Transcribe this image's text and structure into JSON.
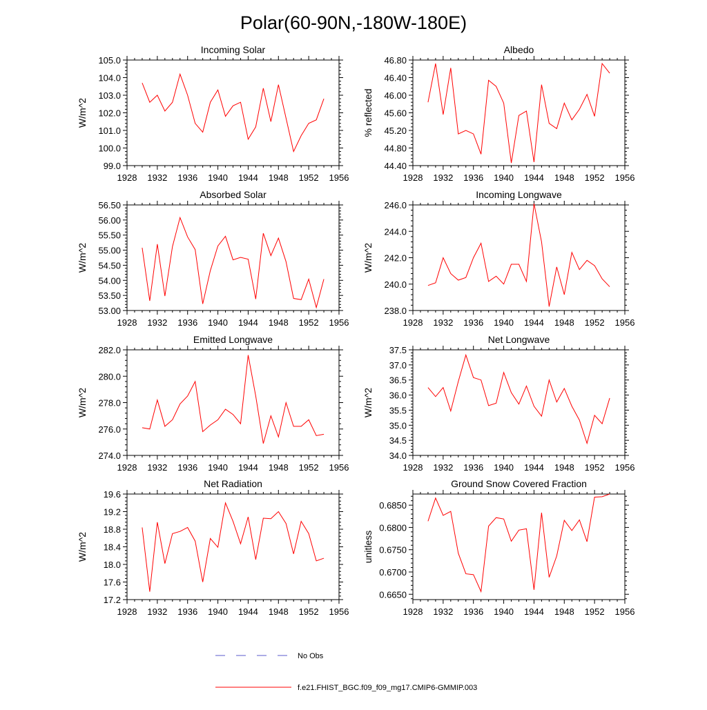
{
  "figure": {
    "title": "Polar(60-90N,-180W-180E)"
  },
  "legend": {
    "items": [
      {
        "label": "No Obs",
        "color": "#5a5acc",
        "dashed": true
      },
      {
        "label": "f.e21.FHIST_BGC.f09_f09_mg17.CMIP6-GMMIP.003",
        "color": "#ff0000",
        "dashed": false
      }
    ]
  },
  "colors": {
    "series": "#ff0000",
    "axis": "#000000"
  },
  "chart_data": [
    {
      "type": "line",
      "title": "Incoming Solar",
      "xlabel": "",
      "ylabel": "W/m^2",
      "xlim": [
        1928,
        1956
      ],
      "xticks": [
        "1928",
        "1932",
        "1936",
        "1940",
        "1944",
        "1948",
        "1952",
        "1956"
      ],
      "ylim": [
        99.0,
        105.0
      ],
      "yticks": [
        "99.0",
        "100.0",
        "101.0",
        "102.0",
        "103.0",
        "104.0",
        "105.0"
      ],
      "x": [
        1930,
        1931,
        1932,
        1933,
        1934,
        1935,
        1936,
        1937,
        1938,
        1939,
        1940,
        1941,
        1942,
        1943,
        1944,
        1945,
        1946,
        1947,
        1948,
        1949,
        1950,
        1951,
        1952,
        1953,
        1954
      ],
      "series": [
        {
          "values": [
            103.7,
            102.6,
            103.0,
            102.1,
            102.6,
            104.2,
            103.0,
            101.4,
            100.9,
            102.6,
            103.3,
            101.8,
            102.4,
            102.6,
            100.5,
            101.2,
            103.4,
            101.5,
            103.6,
            101.7,
            99.8,
            100.7,
            101.4,
            101.6,
            102.8
          ]
        }
      ]
    },
    {
      "type": "line",
      "title": "Albedo",
      "xlabel": "",
      "ylabel": "% reflected",
      "xlim": [
        1928,
        1956
      ],
      "xticks": [
        "1928",
        "1932",
        "1936",
        "1940",
        "1944",
        "1948",
        "1952",
        "1956"
      ],
      "ylim": [
        44.4,
        46.8
      ],
      "yticks": [
        "44.40",
        "44.80",
        "45.20",
        "45.60",
        "46.00",
        "46.40",
        "46.80"
      ],
      "x": [
        1930,
        1931,
        1932,
        1933,
        1934,
        1935,
        1936,
        1937,
        1938,
        1939,
        1940,
        1941,
        1942,
        1943,
        1944,
        1945,
        1946,
        1947,
        1948,
        1949,
        1950,
        1951,
        1952,
        1953,
        1954
      ],
      "series": [
        {
          "values": [
            45.84,
            46.72,
            45.56,
            46.62,
            45.12,
            45.2,
            45.12,
            44.66,
            46.34,
            46.2,
            45.82,
            44.46,
            45.54,
            45.64,
            44.48,
            46.24,
            45.36,
            45.24,
            45.82,
            45.44,
            45.68,
            46.02,
            45.52,
            46.72,
            46.5
          ]
        }
      ]
    },
    {
      "type": "line",
      "title": "Absorbed Solar",
      "xlabel": "",
      "ylabel": "W/m^2",
      "xlim": [
        1928,
        1956
      ],
      "xticks": [
        "1928",
        "1932",
        "1936",
        "1940",
        "1944",
        "1948",
        "1952",
        "1956"
      ],
      "ylim": [
        53.0,
        56.5
      ],
      "yticks": [
        "53.00",
        "53.50",
        "54.00",
        "54.50",
        "55.00",
        "55.50",
        "56.00",
        "56.50"
      ],
      "x": [
        1930,
        1931,
        1932,
        1933,
        1934,
        1935,
        1936,
        1937,
        1938,
        1939,
        1940,
        1941,
        1942,
        1943,
        1944,
        1945,
        1946,
        1947,
        1948,
        1949,
        1950,
        1951,
        1952,
        1953,
        1954
      ],
      "series": [
        {
          "values": [
            55.08,
            53.32,
            55.2,
            53.48,
            55.12,
            56.08,
            55.44,
            55.02,
            53.22,
            54.32,
            55.14,
            55.46,
            54.68,
            54.76,
            54.7,
            53.38,
            55.56,
            54.82,
            55.4,
            54.62,
            53.4,
            53.36,
            54.04,
            53.1,
            54.04
          ]
        }
      ]
    },
    {
      "type": "line",
      "title": "Incoming Longwave",
      "xlabel": "",
      "ylabel": "W/m^2",
      "xlim": [
        1928,
        1956
      ],
      "xticks": [
        "1928",
        "1932",
        "1936",
        "1940",
        "1944",
        "1948",
        "1952",
        "1956"
      ],
      "ylim": [
        238.0,
        246.0
      ],
      "yticks": [
        "238.0",
        "240.0",
        "242.0",
        "244.0",
        "246.0"
      ],
      "x": [
        1930,
        1931,
        1932,
        1933,
        1934,
        1935,
        1936,
        1937,
        1938,
        1939,
        1940,
        1941,
        1942,
        1943,
        1944,
        1945,
        1946,
        1947,
        1948,
        1949,
        1950,
        1951,
        1952,
        1953,
        1954
      ],
      "series": [
        {
          "values": [
            239.9,
            240.1,
            242.0,
            240.8,
            240.3,
            240.5,
            242.0,
            243.1,
            240.2,
            240.6,
            240.0,
            241.5,
            241.5,
            240.2,
            246.1,
            243.2,
            238.3,
            241.3,
            239.2,
            242.4,
            241.1,
            241.8,
            241.4,
            240.4,
            239.8
          ]
        }
      ]
    },
    {
      "type": "line",
      "title": "Emitted Longwave",
      "xlabel": "",
      "ylabel": "W/m^2",
      "xlim": [
        1928,
        1956
      ],
      "xticks": [
        "1928",
        "1932",
        "1936",
        "1940",
        "1944",
        "1948",
        "1952",
        "1956"
      ],
      "ylim": [
        274.0,
        282.0
      ],
      "yticks": [
        "274.0",
        "276.0",
        "278.0",
        "280.0",
        "282.0"
      ],
      "x": [
        1930,
        1931,
        1932,
        1933,
        1934,
        1935,
        1936,
        1937,
        1938,
        1939,
        1940,
        1941,
        1942,
        1943,
        1944,
        1945,
        1946,
        1947,
        1948,
        1949,
        1950,
        1951,
        1952,
        1953,
        1954
      ],
      "series": [
        {
          "values": [
            276.1,
            276.0,
            278.2,
            276.2,
            276.7,
            277.9,
            278.5,
            279.6,
            275.8,
            276.3,
            276.7,
            277.5,
            277.1,
            276.4,
            281.6,
            278.5,
            274.9,
            277.0,
            275.4,
            278.0,
            276.2,
            276.2,
            276.7,
            275.5,
            275.6
          ]
        }
      ]
    },
    {
      "type": "line",
      "title": "Net Longwave",
      "xlabel": "",
      "ylabel": "W/m^2",
      "xlim": [
        1928,
        1956
      ],
      "xticks": [
        "1928",
        "1932",
        "1936",
        "1940",
        "1944",
        "1948",
        "1952",
        "1956"
      ],
      "ylim": [
        34.0,
        37.5
      ],
      "yticks": [
        "34.0",
        "34.5",
        "35.0",
        "35.5",
        "36.0",
        "36.5",
        "37.0",
        "37.5"
      ],
      "x": [
        1930,
        1931,
        1932,
        1933,
        1934,
        1935,
        1936,
        1937,
        1938,
        1939,
        1940,
        1941,
        1942,
        1943,
        1944,
        1945,
        1946,
        1947,
        1948,
        1949,
        1950,
        1951,
        1952,
        1953,
        1954
      ],
      "series": [
        {
          "values": [
            36.25,
            35.95,
            36.25,
            35.47,
            36.45,
            37.33,
            36.58,
            36.5,
            35.65,
            35.73,
            36.75,
            36.08,
            35.7,
            36.3,
            35.63,
            35.3,
            36.5,
            35.77,
            36.22,
            35.63,
            35.17,
            34.4,
            35.33,
            35.05,
            35.9
          ]
        }
      ]
    },
    {
      "type": "line",
      "title": "Net Radiation",
      "xlabel": "",
      "ylabel": "W/m^2",
      "xlim": [
        1928,
        1956
      ],
      "xticks": [
        "1928",
        "1932",
        "1936",
        "1940",
        "1944",
        "1948",
        "1952",
        "1956"
      ],
      "ylim": [
        17.2,
        19.6
      ],
      "yticks": [
        "17.2",
        "17.6",
        "18.0",
        "18.4",
        "18.8",
        "19.2",
        "19.6"
      ],
      "x": [
        1930,
        1931,
        1932,
        1933,
        1934,
        1935,
        1936,
        1937,
        1938,
        1939,
        1940,
        1941,
        1942,
        1943,
        1944,
        1945,
        1946,
        1947,
        1948,
        1949,
        1950,
        1951,
        1952,
        1953,
        1954
      ],
      "series": [
        {
          "values": [
            18.84,
            17.38,
            18.96,
            18.02,
            18.7,
            18.75,
            18.84,
            18.53,
            17.6,
            18.59,
            18.39,
            19.4,
            18.98,
            18.47,
            19.08,
            18.11,
            19.05,
            19.04,
            19.2,
            18.93,
            18.24,
            18.98,
            18.7,
            18.08,
            18.14
          ]
        }
      ]
    },
    {
      "type": "line",
      "title": "Ground Snow Covered Fraction",
      "xlabel": "",
      "ylabel": "unitless",
      "xlim": [
        1928,
        1956
      ],
      "xticks": [
        "1928",
        "1932",
        "1936",
        "1940",
        "1944",
        "1948",
        "1952",
        "1956"
      ],
      "ylim": [
        0.6638,
        0.6875
      ],
      "yticks": [
        "0.6650",
        "0.6700",
        "0.6750",
        "0.6800",
        "0.6850"
      ],
      "x": [
        1930,
        1931,
        1932,
        1933,
        1934,
        1935,
        1936,
        1937,
        1938,
        1939,
        1940,
        1941,
        1942,
        1943,
        1944,
        1945,
        1946,
        1947,
        1948,
        1949,
        1950,
        1951,
        1952,
        1953,
        1954
      ],
      "series": [
        {
          "values": [
            0.6814,
            0.6866,
            0.6827,
            0.6836,
            0.6742,
            0.6696,
            0.6694,
            0.6656,
            0.6803,
            0.6822,
            0.6819,
            0.6769,
            0.6794,
            0.6797,
            0.666,
            0.6833,
            0.6688,
            0.6736,
            0.6816,
            0.6793,
            0.6817,
            0.6768,
            0.6868,
            0.6869,
            0.6875
          ]
        }
      ]
    }
  ]
}
